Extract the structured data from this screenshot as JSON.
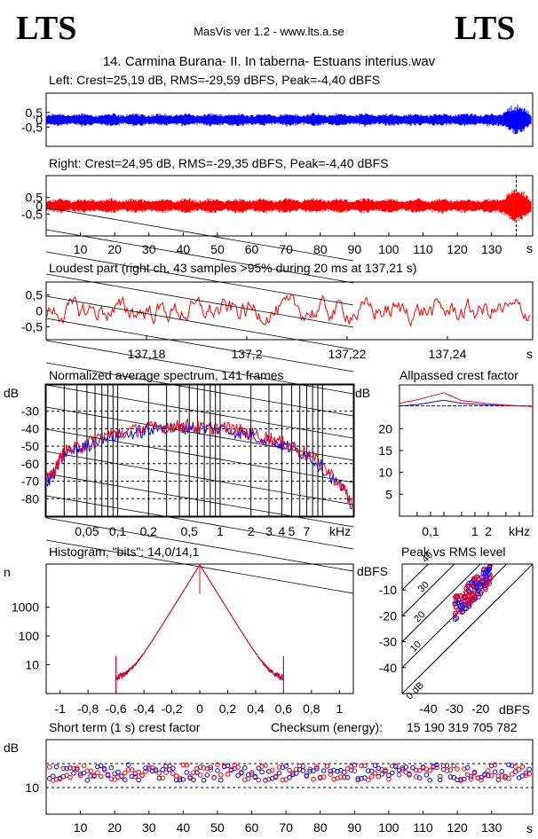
{
  "header": {
    "logo_left": "LTS",
    "logo_right": "LTS",
    "app_title": "MasVis ver 1.2 - www.lts.a.se",
    "track_title": "14. Carmina Burana- II. In taberna- Estuans interius.wav"
  },
  "colors": {
    "left": "#0000ff",
    "right": "#ff0000",
    "grid": "#000000"
  },
  "chart_data": [
    {
      "id": "left_waveform",
      "type": "line",
      "title": "Left: Crest=25,19 dB, RMS=-29,59 dBFS, Peak=-4,40 dBFS",
      "yticks": [
        "0,5",
        "0",
        "-0,5"
      ],
      "ylim": [
        -1,
        1
      ],
      "series": [
        {
          "color": "#0000ff",
          "x_range_s": [
            0,
            142
          ]
        }
      ]
    },
    {
      "id": "right_waveform",
      "type": "line",
      "title": "Right: Crest=24,95 dB, RMS=-29,35 dBFS, Peak=-4,40 dBFS",
      "yticks": [
        "0,5",
        "0",
        "-0,5"
      ],
      "ylim": [
        -1,
        1
      ],
      "xticks": [
        "10",
        "20",
        "30",
        "40",
        "50",
        "60",
        "70",
        "80",
        "90",
        "100",
        "110",
        "120",
        "130"
      ],
      "xunit": "s",
      "marker_s": 137.21,
      "series": [
        {
          "color": "#ff0000",
          "x_range_s": [
            0,
            142
          ]
        }
      ]
    },
    {
      "id": "loudest_part",
      "type": "line",
      "title": "Loudest part (right ch, 43 samples >95% during 20 ms at 137,21 s)",
      "yticks": [
        "0,5",
        "0",
        "-0,5"
      ],
      "ylim": [
        -1,
        1
      ],
      "xticks": [
        "137,18",
        "137,2",
        "137,22",
        "137,24"
      ],
      "xlim": [
        137.16,
        137.257
      ],
      "xunit": "s"
    },
    {
      "id": "avg_spectrum",
      "type": "line",
      "title": "Normalized average spectrum, 141 frames",
      "ylabel": "dB",
      "yticks": [
        "-30",
        "-40",
        "-50",
        "-60",
        "-70",
        "-80"
      ],
      "ylim": [
        -90,
        -15
      ],
      "xticks": [
        "0,05",
        "0,1",
        "0,2",
        "0,5",
        "1",
        "2",
        "3",
        "4",
        "5",
        "7"
      ],
      "xunit": "kHz",
      "log_x": true,
      "xlim_khz": [
        0.02,
        20
      ],
      "series": [
        {
          "color": "#0000ff",
          "x_khz": [
            0.02,
            0.025,
            0.03,
            0.04,
            0.05,
            0.07,
            0.1,
            0.15,
            0.2,
            0.3,
            0.4,
            0.5,
            0.7,
            1,
            1.5,
            2,
            3,
            4,
            5,
            7,
            10,
            15,
            20
          ],
          "y": [
            -72,
            -64,
            -54,
            -52,
            -50,
            -45,
            -44,
            -42,
            -41,
            -39,
            -40,
            -39,
            -40,
            -40,
            -42,
            -44,
            -46,
            -49,
            -51,
            -55,
            -62,
            -73,
            -85
          ]
        },
        {
          "color": "#ff0000",
          "x_khz": [
            0.02,
            0.025,
            0.03,
            0.04,
            0.05,
            0.07,
            0.1,
            0.15,
            0.2,
            0.3,
            0.4,
            0.5,
            0.7,
            1,
            1.5,
            2,
            3,
            4,
            5,
            7,
            10,
            15,
            20
          ],
          "y": [
            -70,
            -62,
            -53,
            -51,
            -49,
            -44,
            -43,
            -41,
            -40,
            -38,
            -39,
            -38,
            -40,
            -39,
            -41,
            -43,
            -45,
            -48,
            -50,
            -54,
            -61,
            -72,
            -84
          ]
        }
      ]
    },
    {
      "id": "allpassed_crest",
      "type": "line",
      "title": "Allpassed crest factor",
      "ylabel": "dB",
      "yticks": [
        "20",
        "15",
        "10",
        "5"
      ],
      "ylim": [
        0,
        30
      ],
      "xticks": [
        "0,1",
        "1",
        "2"
      ],
      "xunit": "kHz",
      "series": [
        {
          "color": "#0000ff",
          "x_khz": [
            0.02,
            0.05,
            0.1,
            0.2,
            0.5,
            1,
            2,
            5,
            20
          ],
          "y": [
            25.2,
            25.5,
            26,
            26.5,
            25.8,
            25.6,
            25.4,
            25.3,
            25.1
          ]
        },
        {
          "color": "#ff0000",
          "x_khz": [
            0.02,
            0.05,
            0.1,
            0.2,
            0.5,
            1,
            2,
            5,
            20
          ],
          "y": [
            25.8,
            26.6,
            27.4,
            28.2,
            26.4,
            26.1,
            25.7,
            25.4,
            25.1
          ]
        }
      ]
    },
    {
      "id": "histogram",
      "type": "line",
      "title": "Histogram, \"bits\": 14,0/14,1",
      "ylabel": "n",
      "yticks": [
        "1000",
        "100",
        "10"
      ],
      "log_y": true,
      "xticks": [
        "-1",
        "-0,8",
        "-0,6",
        "-0,4",
        "-0,2",
        "0",
        "0,2",
        "0,4",
        "0,6",
        "0,8",
        "1"
      ],
      "xlim": [
        -1.1,
        1.1
      ]
    },
    {
      "id": "peak_vs_rms",
      "type": "scatter",
      "title": "Peak vs RMS level",
      "ylabel": "dBFS",
      "xlabel": "dBFS",
      "yticks": [
        "-10",
        "-20",
        "-30",
        "-40"
      ],
      "xticks": [
        "-40",
        "-30",
        "-20"
      ],
      "xlim": [
        -50,
        0
      ],
      "ylim": [
        -50,
        0
      ],
      "diagonals": [
        "40",
        "30",
        "20",
        "10",
        "0 dB"
      ]
    },
    {
      "id": "short_term_crest",
      "type": "scatter",
      "title": "Short term (1 s) crest factor",
      "checksum_label": "Checksum (energy):",
      "checksum_value": "15 190 319 705 782",
      "ylabel": "dB",
      "yticks": [
        "10"
      ],
      "xticks": [
        "10",
        "20",
        "30",
        "40",
        "50",
        "60",
        "70",
        "80",
        "90",
        "100",
        "110",
        "120",
        "130"
      ],
      "xunit": "s"
    }
  ]
}
